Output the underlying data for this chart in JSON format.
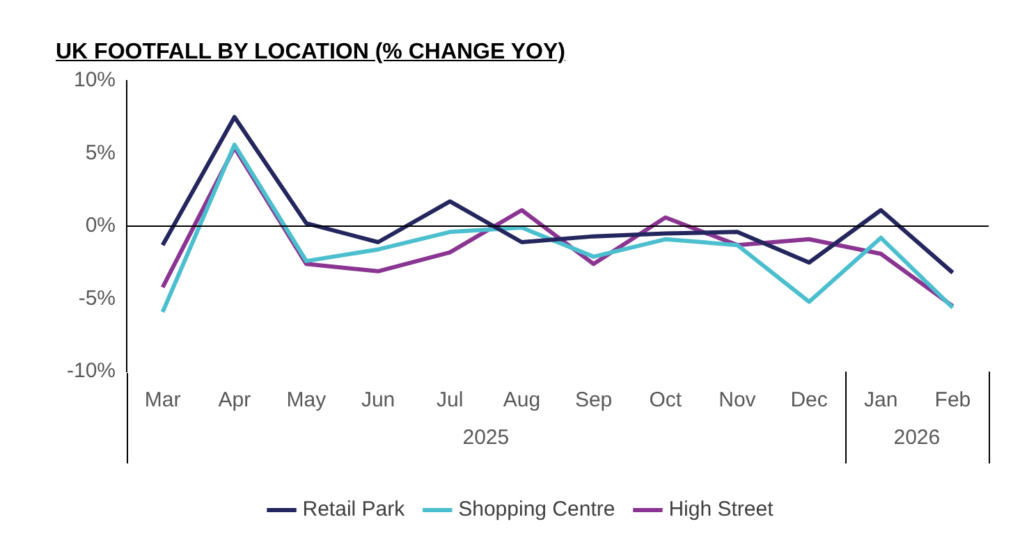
{
  "chart_data": {
    "type": "line",
    "title": "UK FOOTFALL BY LOCATION (% CHANGE YOY)",
    "categories": [
      "Mar",
      "Apr",
      "May",
      "Jun",
      "Jul",
      "Aug",
      "Sep",
      "Oct",
      "Nov",
      "Dec",
      "Jan",
      "Feb"
    ],
    "series": [
      {
        "name": "Retail Park",
        "color": "#24265e",
        "values": [
          -1.3,
          7.5,
          0.2,
          -1.1,
          1.7,
          -1.1,
          -0.7,
          -0.5,
          -0.4,
          -2.5,
          1.1,
          -3.2
        ]
      },
      {
        "name": "Shopping Centre",
        "color": "#4cbfcf",
        "values": [
          -5.9,
          5.6,
          -2.4,
          -1.6,
          -0.4,
          -0.1,
          -2.1,
          -0.9,
          -1.3,
          -5.2,
          -0.8,
          -5.6
        ]
      },
      {
        "name": "High Street",
        "color": "#8a3591",
        "values": [
          -4.2,
          5.4,
          -2.6,
          -3.1,
          -1.8,
          1.1,
          -2.6,
          0.6,
          -1.3,
          -0.9,
          -1.9,
          -5.5
        ]
      }
    ],
    "ylim": [
      -10,
      10
    ],
    "yticks": [
      {
        "value": -10,
        "label": "-10%"
      },
      {
        "value": -5,
        "label": "-5%"
      },
      {
        "value": 0,
        "label": "0%"
      },
      {
        "value": 5,
        "label": "5%"
      },
      {
        "value": 10,
        "label": "10%"
      }
    ],
    "annotations": [
      "2025",
      "2026"
    ],
    "ref_lines": [
      {
        "axis": "y",
        "value": 0,
        "color": "#000000"
      }
    ],
    "legend": "bottom",
    "marker": "none",
    "line_style": "solid"
  }
}
